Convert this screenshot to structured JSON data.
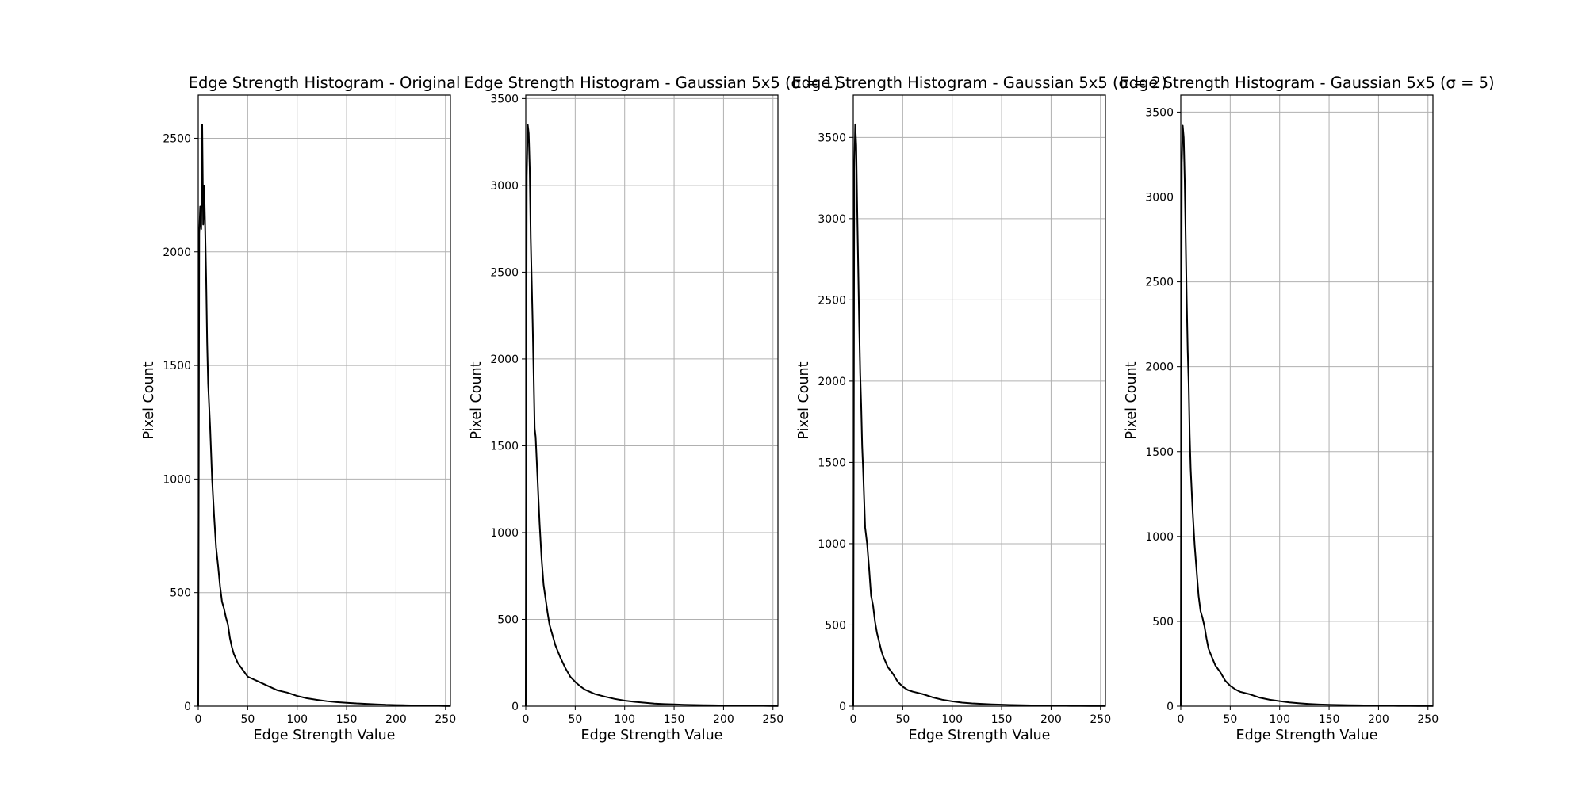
{
  "chart_data": [
    {
      "type": "line",
      "title": "Edge Strength Histogram - Original",
      "xlabel": "Edge Strength Value",
      "ylabel": "Pixel Count",
      "xlim": [
        0,
        255
      ],
      "ylim": [
        0,
        2690
      ],
      "xticks": [
        0,
        50,
        100,
        150,
        200,
        250
      ],
      "yticks": [
        0,
        500,
        1000,
        1500,
        2000,
        2500
      ],
      "grid": true,
      "line_color": "#000000",
      "series": [
        {
          "x": [
            0,
            1,
            2,
            3,
            4,
            5,
            6,
            7,
            8,
            9,
            10,
            12,
            14,
            16,
            18,
            20,
            22,
            24,
            26,
            28,
            30,
            32,
            34,
            36,
            38,
            40,
            45,
            50,
            55,
            60,
            65,
            70,
            75,
            80,
            90,
            100,
            110,
            120,
            130,
            140,
            150,
            160,
            170,
            180,
            190,
            200,
            210,
            220,
            230,
            240,
            250,
            255
          ],
          "y": [
            0,
            2080,
            2200,
            2100,
            2560,
            2120,
            2290,
            2100,
            1880,
            1600,
            1420,
            1230,
            1000,
            840,
            700,
            620,
            530,
            460,
            430,
            390,
            360,
            300,
            260,
            230,
            210,
            190,
            160,
            130,
            120,
            110,
            100,
            90,
            80,
            70,
            60,
            45,
            35,
            28,
            22,
            18,
            15,
            12,
            10,
            8,
            6,
            5,
            4,
            3,
            2,
            2,
            1,
            1
          ]
        }
      ]
    },
    {
      "type": "line",
      "title": "Edge Strength Histogram - Gaussian 5x5 (σ = 1)",
      "xlabel": "Edge Strength Value",
      "ylabel": "Pixel Count",
      "xlim": [
        0,
        255
      ],
      "ylim": [
        0,
        3520
      ],
      "xticks": [
        0,
        50,
        100,
        150,
        200,
        250
      ],
      "yticks": [
        0,
        500,
        1000,
        1500,
        2000,
        2500,
        3000,
        3500
      ],
      "grid": true,
      "line_color": "#000000",
      "series": [
        {
          "x": [
            0,
            1,
            2,
            3,
            4,
            5,
            6,
            7,
            8,
            9,
            10,
            12,
            14,
            16,
            18,
            20,
            22,
            24,
            26,
            28,
            30,
            35,
            40,
            45,
            50,
            55,
            60,
            70,
            80,
            90,
            100,
            110,
            120,
            130,
            140,
            150,
            160,
            170,
            180,
            190,
            200,
            210,
            220,
            230,
            240,
            250,
            255
          ],
          "y": [
            0,
            3050,
            3350,
            3300,
            3100,
            2700,
            2450,
            2200,
            1900,
            1600,
            1550,
            1300,
            1050,
            850,
            700,
            620,
            540,
            470,
            430,
            390,
            350,
            280,
            220,
            170,
            140,
            115,
            95,
            70,
            55,
            42,
            32,
            25,
            20,
            15,
            12,
            10,
            8,
            7,
            6,
            5,
            4,
            3,
            3,
            2,
            2,
            1,
            1
          ]
        }
      ]
    },
    {
      "type": "line",
      "title": "Edge Strength Histogram - Gaussian 5x5 (σ = 2)",
      "xlabel": "Edge Strength Value",
      "ylabel": "Pixel Count",
      "xlim": [
        0,
        255
      ],
      "ylim": [
        0,
        3760
      ],
      "xticks": [
        0,
        50,
        100,
        150,
        200,
        250
      ],
      "yticks": [
        0,
        500,
        1000,
        1500,
        2000,
        2500,
        3000,
        3500
      ],
      "grid": true,
      "line_color": "#000000",
      "series": [
        {
          "x": [
            0,
            1,
            2,
            3,
            4,
            5,
            6,
            7,
            8,
            9,
            10,
            12,
            14,
            16,
            18,
            20,
            22,
            24,
            26,
            28,
            30,
            35,
            40,
            45,
            50,
            55,
            60,
            70,
            80,
            90,
            100,
            110,
            120,
            130,
            140,
            150,
            160,
            170,
            180,
            190,
            200,
            210,
            220,
            230,
            240,
            250,
            255
          ],
          "y": [
            0,
            3300,
            3580,
            3450,
            3050,
            2700,
            2350,
            2050,
            1850,
            1600,
            1450,
            1100,
            1000,
            850,
            680,
            620,
            520,
            450,
            400,
            350,
            310,
            240,
            200,
            150,
            120,
            100,
            90,
            75,
            55,
            40,
            30,
            22,
            17,
            14,
            11,
            9,
            7,
            6,
            5,
            4,
            3,
            3,
            2,
            2,
            1,
            1,
            1
          ]
        }
      ]
    },
    {
      "type": "line",
      "title": "Edge Strength Histogram - Gaussian 5x5 (σ = 5)",
      "xlabel": "Edge Strength Value",
      "ylabel": "Pixel Count",
      "xlim": [
        0,
        255
      ],
      "ylim": [
        0,
        3600
      ],
      "xticks": [
        0,
        50,
        100,
        150,
        200,
        250
      ],
      "yticks": [
        0,
        500,
        1000,
        1500,
        2000,
        2500,
        3000,
        3500
      ],
      "grid": true,
      "line_color": "#000000",
      "series": [
        {
          "x": [
            0,
            1,
            2,
            3,
            4,
            5,
            6,
            7,
            8,
            9,
            10,
            12,
            14,
            16,
            18,
            20,
            22,
            24,
            26,
            28,
            30,
            35,
            40,
            45,
            50,
            55,
            60,
            70,
            80,
            90,
            100,
            110,
            120,
            130,
            140,
            150,
            160,
            170,
            180,
            190,
            200,
            210,
            220,
            230,
            240,
            250,
            255
          ],
          "y": [
            0,
            3200,
            3420,
            3350,
            3100,
            2750,
            2400,
            2100,
            1900,
            1600,
            1400,
            1150,
            950,
            800,
            650,
            560,
            520,
            470,
            400,
            340,
            310,
            240,
            200,
            150,
            120,
            100,
            85,
            70,
            50,
            38,
            30,
            22,
            17,
            13,
            10,
            8,
            7,
            6,
            5,
            4,
            3,
            3,
            2,
            2,
            1,
            1,
            1
          ]
        }
      ]
    }
  ]
}
